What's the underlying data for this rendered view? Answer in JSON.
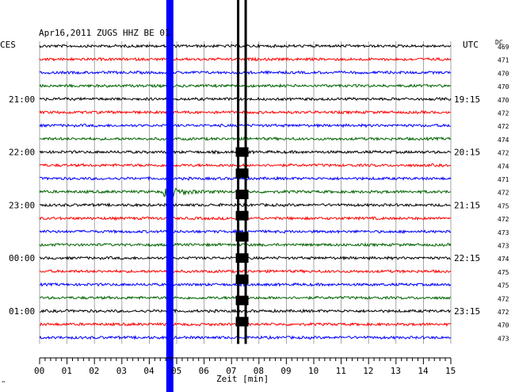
{
  "chart_data": {
    "type": "line",
    "title": "Apr16,2011   ZUGS HHZ BE 01",
    "left_header": "CES",
    "right_header": "UTC",
    "dc_header": "DC",
    "xlabel": "Zeit [min]",
    "xlim": [
      0,
      15
    ],
    "x_ticks": [
      "00",
      "01",
      "02",
      "03",
      "04",
      "05",
      "06",
      "07",
      "08",
      "09",
      "10",
      "11",
      "12",
      "13",
      "14",
      "15"
    ],
    "left_time_labels": [
      {
        "row": 4,
        "text": "21:00"
      },
      {
        "row": 8,
        "text": "22:00"
      },
      {
        "row": 12,
        "text": "23:00"
      },
      {
        "row": 16,
        "text": "00:00"
      },
      {
        "row": 20,
        "text": "01:00"
      }
    ],
    "right_time_labels": [
      {
        "row": 4,
        "text": "19:15"
      },
      {
        "row": 8,
        "text": "20:15"
      },
      {
        "row": 12,
        "text": "21:15"
      },
      {
        "row": 16,
        "text": "22:15"
      },
      {
        "row": 20,
        "text": "23:15"
      }
    ],
    "trace_colors": [
      "#000000",
      "#ff0000",
      "#0000ff",
      "#006400"
    ],
    "dc_offsets": [
      469,
      471,
      470,
      470,
      470,
      472,
      472,
      474,
      472,
      474,
      471,
      472,
      475,
      472,
      473,
      473,
      474,
      475,
      475,
      472,
      472,
      470,
      473
    ],
    "events": [
      {
        "row": 11,
        "minute": 4.7,
        "type": "local event wavetrain"
      },
      {
        "minute": 4.75,
        "type": "large amplitude, clipped",
        "color": "#0000ff"
      },
      {
        "minute": 7.3,
        "type": "large amplitude, clipped",
        "color": "#000000"
      }
    ],
    "corner_mark": "\""
  }
}
